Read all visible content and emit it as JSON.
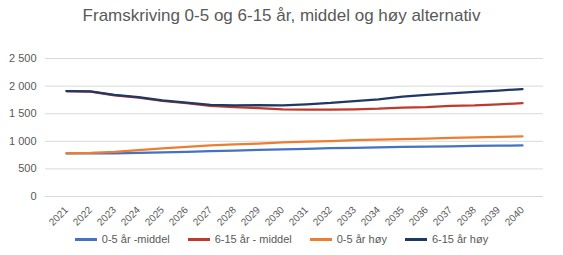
{
  "chart_data": {
    "type": "line",
    "title": "Framskriving 0-5 og 6-15 år, middel og høy alternativ",
    "categories": [
      "2021",
      "2022",
      "2023",
      "2024",
      "2025",
      "2026",
      "2027",
      "2028",
      "2029",
      "2030",
      "2031",
      "2032",
      "2033",
      "2034",
      "2035",
      "2036",
      "2037",
      "2038",
      "2039",
      "2040"
    ],
    "series": [
      {
        "name": "0-5 år -middel",
        "color": "#4472c4",
        "values": [
          780,
          780,
          780,
          790,
          800,
          810,
          820,
          830,
          845,
          855,
          865,
          875,
          880,
          890,
          900,
          905,
          910,
          915,
          920,
          925
        ]
      },
      {
        "name": "6-15 år - middel",
        "color": "#c0392b",
        "values": [
          1910,
          1900,
          1830,
          1790,
          1730,
          1690,
          1640,
          1620,
          1600,
          1580,
          1575,
          1575,
          1580,
          1590,
          1610,
          1620,
          1640,
          1650,
          1670,
          1690
        ]
      },
      {
        "name": "0-5 år høy",
        "color": "#ed7d31",
        "values": [
          780,
          790,
          810,
          840,
          870,
          900,
          925,
          945,
          960,
          980,
          995,
          1005,
          1020,
          1030,
          1040,
          1050,
          1060,
          1070,
          1080,
          1090
        ]
      },
      {
        "name": "6-15 år høy",
        "color": "#1f3864",
        "values": [
          1910,
          1905,
          1840,
          1800,
          1740,
          1700,
          1660,
          1650,
          1655,
          1650,
          1670,
          1695,
          1730,
          1760,
          1810,
          1840,
          1870,
          1895,
          1920,
          1945
        ]
      }
    ],
    "ylim": [
      0,
      2500
    ],
    "yticks": [
      0,
      500,
      {
        "value": 1000,
        "label": "1 000"
      },
      {
        "value": 1500,
        "label": "1 500"
      },
      {
        "value": 2000,
        "label": "2 000"
      },
      {
        "value": 2500,
        "label": "2 500"
      }
    ],
    "grid": true,
    "legend": "bottom"
  }
}
